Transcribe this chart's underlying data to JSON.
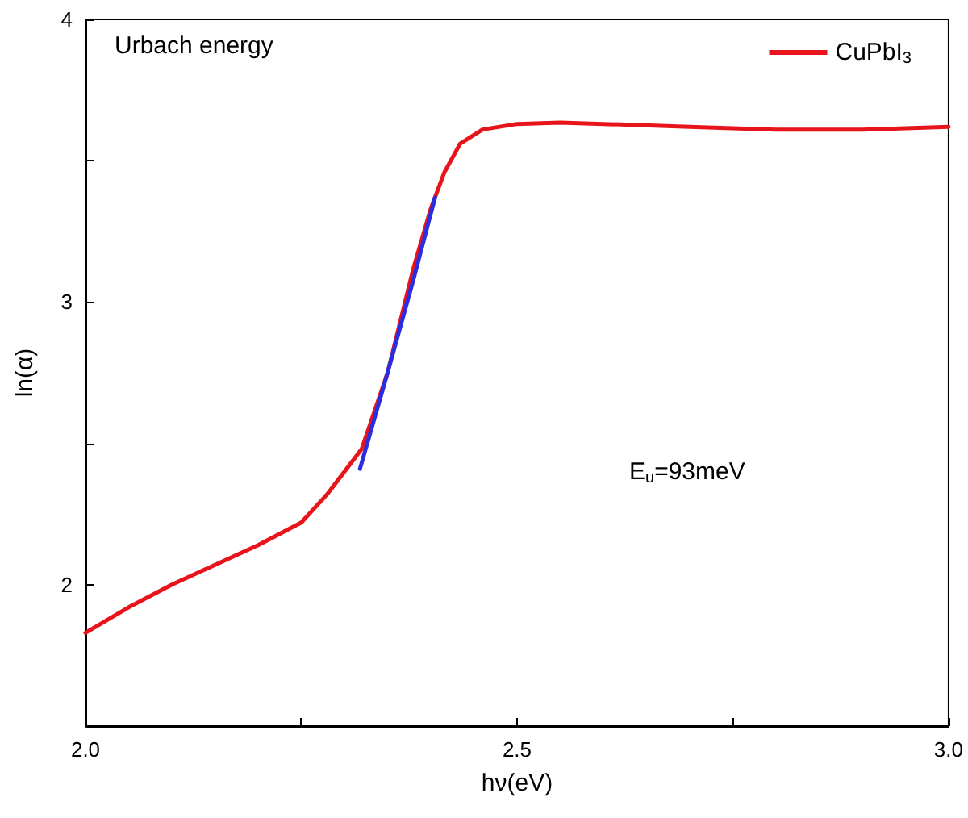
{
  "chart_data": {
    "type": "line",
    "title": "Urbach energy",
    "xlabel": "hν(eV)",
    "ylabel": "ln(α)",
    "xlim": [
      2.0,
      3.0
    ],
    "ylim": [
      1.5,
      4
    ],
    "xticks": [
      {
        "value": 2.0,
        "label": "2.0"
      },
      {
        "value": 2.25,
        "label": null
      },
      {
        "value": 2.5,
        "label": "2.5"
      },
      {
        "value": 2.75,
        "label": null
      },
      {
        "value": 3.0,
        "label": "3.0"
      }
    ],
    "yticks": [
      {
        "value": 1.5,
        "label": null
      },
      2,
      {
        "value": 2.5,
        "label": null
      },
      3,
      {
        "value": 3.5,
        "label": null
      },
      4
    ],
    "series": [
      {
        "name": "CuPbI$_{3}$",
        "color": "#e8141c",
        "x": [
          2.0,
          2.05,
          2.1,
          2.15,
          2.2,
          2.25,
          2.28,
          2.3,
          2.32,
          2.35,
          2.38,
          2.4,
          2.416,
          2.434,
          2.46,
          2.5,
          2.55,
          2.6,
          2.7,
          2.8,
          2.9,
          3.0
        ],
        "values": [
          1.83,
          1.92,
          2.0,
          2.07,
          2.14,
          2.22,
          2.32,
          2.4,
          2.48,
          2.75,
          3.12,
          3.33,
          3.46,
          3.56,
          3.61,
          3.63,
          3.635,
          3.63,
          3.62,
          3.61,
          3.61,
          3.62
        ]
      },
      {
        "color": "#2a2ee0",
        "x": [
          2.318,
          2.35,
          2.38,
          2.405
        ],
        "values": [
          2.41,
          2.75,
          3.08,
          3.37
        ]
      }
    ],
    "annotations": [
      "E$_{u}$=93meV"
    ],
    "legend": "top right",
    "grid": false,
    "line_style": "solid",
    "marker": "none"
  }
}
